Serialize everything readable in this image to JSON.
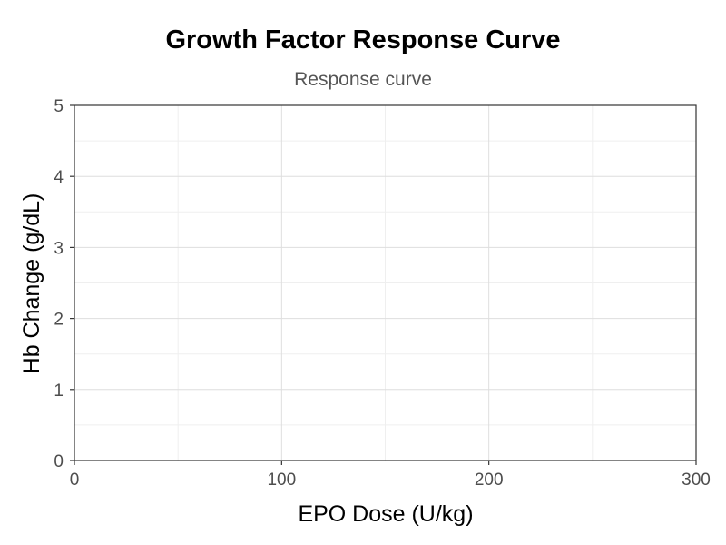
{
  "chart_data": {
    "type": "line",
    "title": "Growth Factor Response Curve",
    "subtitle": "Response curve",
    "xlabel": "EPO Dose (U/kg)",
    "ylabel": "Hb Change (g/dL)",
    "xlim": [
      0,
      300
    ],
    "ylim": [
      0,
      5
    ],
    "x_ticks": [
      0,
      100,
      200,
      300
    ],
    "y_ticks": [
      0,
      1,
      2,
      3,
      4,
      5
    ],
    "grid": true,
    "series": []
  },
  "colors": {
    "grid_major": "#dedede",
    "grid_minor": "#efefef",
    "axis": "#333333",
    "tick_text": "#4d4d4d"
  }
}
